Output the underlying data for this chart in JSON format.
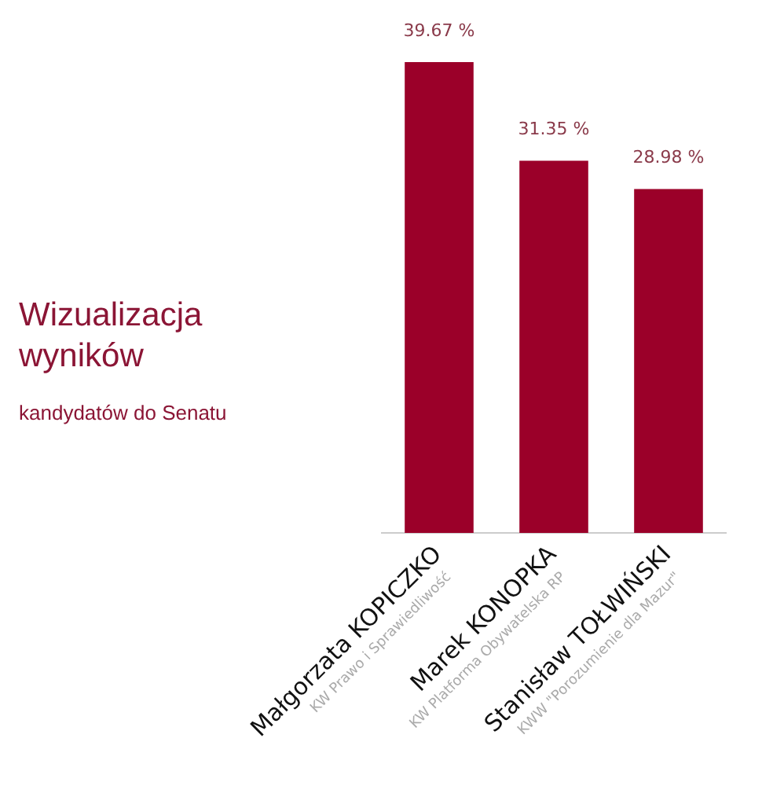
{
  "chart_data": {
    "type": "bar",
    "title": "Wizualizacja wyników",
    "subtitle": "kandydatów do Senatu",
    "categories": [
      "Małgorzata KOPICZKO",
      "Marek KONOPKA",
      "Stanisław TOŁWIŃSKI"
    ],
    "values": [
      39.67,
      31.35,
      28.98
    ],
    "color": "#9b0029",
    "value_labels": [
      "39.67 %",
      "31.35 %",
      "28.98 %"
    ],
    "annotations": [
      "KW Prawo i Sprawiedliwość",
      "KW Platforma Obywatelska RP",
      "KWW \"Porozumienie dla Mazur\""
    ],
    "grid": false,
    "legend": false
  }
}
